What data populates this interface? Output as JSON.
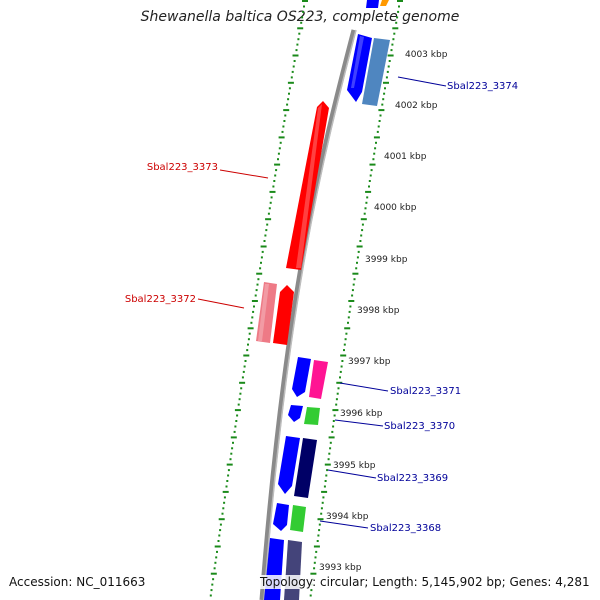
{
  "title": "Shewanella baltica OS223, complete genome",
  "footer": {
    "accession": "Accession: NC_011663",
    "stats": "Topology: circular; Length: 5,145,902 bp; Genes: 4,281"
  },
  "colors": {
    "backbone": "#8a8a8a",
    "tick": "#1a8a1a",
    "blue": "#0000ff",
    "steel": "#4f86c0",
    "red": "#ff0000",
    "pink": "#ee7a86",
    "magenta": "#ff1493",
    "green": "#33cc33",
    "navy": "#000066",
    "slate": "#44447a",
    "orange": "#ff9900",
    "label_red": "#cc0000",
    "label_blue": "#000099"
  },
  "kbp_labels": [
    "4003 kbp",
    "4002 kbp",
    "4001 kbp",
    "4000 kbp",
    "3999 kbp",
    "3998 kbp",
    "3997 kbp",
    "3996 kbp",
    "3995 kbp",
    "3994 kbp",
    "3993 kbp"
  ],
  "gene_labels": [
    "Sbal223_3374",
    "Sbal223_3373",
    "Sbal223_3372",
    "Sbal223_3371",
    "Sbal223_3370",
    "Sbal223_3369",
    "Sbal223_3368"
  ]
}
